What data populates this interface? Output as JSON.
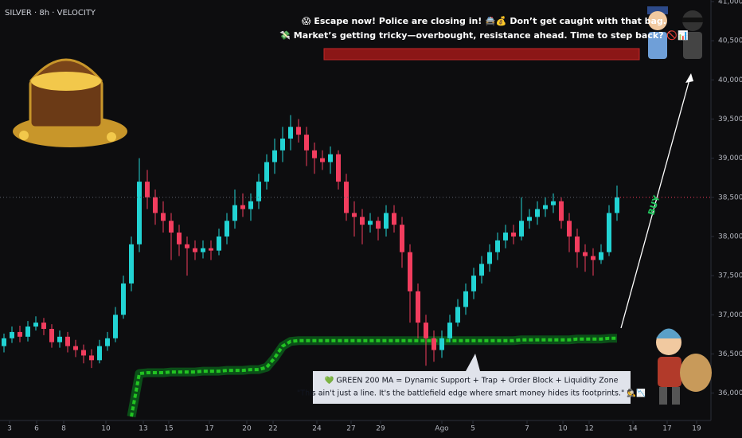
{
  "chart_data": {
    "type": "candlestick",
    "title": "SILVER · 8h · VELOCITY",
    "candles": {
      "open": [
        36600,
        36700,
        36780,
        36720,
        36850,
        36900,
        36820,
        36650,
        36720,
        36600,
        36550,
        36480,
        36420,
        36600,
        36700,
        37000,
        37400,
        37900,
        38700,
        38500,
        38300,
        38200,
        38050,
        37900,
        37850,
        37800,
        37850,
        37820,
        38000,
        38200,
        38400,
        38350,
        38450,
        38700,
        38950,
        39100,
        39250,
        39400,
        39300,
        39100,
        39000,
        38950,
        39050,
        38700,
        38300,
        38250,
        38150,
        38200,
        38100,
        38300,
        38150,
        37800,
        37300,
        36900,
        36700,
        36550,
        36700,
        36900,
        37100,
        37300,
        37500,
        37650,
        37800,
        37950,
        38050,
        38000,
        38200,
        38250,
        38350,
        38400,
        38450,
        38200,
        38000,
        37800,
        37750,
        37700,
        37800,
        38300
      ],
      "high": [
        36760,
        36850,
        36860,
        36920,
        36980,
        36960,
        36880,
        36800,
        36780,
        36680,
        36620,
        36560,
        36680,
        36780,
        37100,
        37500,
        38000,
        39000,
        38850,
        38600,
        38450,
        38300,
        38150,
        38000,
        37950,
        37950,
        37950,
        38100,
        38300,
        38600,
        38550,
        38550,
        38800,
        39050,
        39250,
        39400,
        39550,
        39500,
        39400,
        39200,
        39100,
        39150,
        39100,
        38800,
        38450,
        38350,
        38300,
        38250,
        38400,
        38400,
        38250,
        37900,
        37400,
        37000,
        36800,
        36800,
        37000,
        37200,
        37400,
        37600,
        37750,
        37900,
        38050,
        38150,
        38150,
        38500,
        38350,
        38450,
        38500,
        38550,
        38500,
        38300,
        38100,
        37900,
        37850,
        37900,
        38400,
        38650
      ],
      "low": [
        36520,
        36640,
        36650,
        36660,
        36800,
        36740,
        36580,
        36580,
        36520,
        36460,
        36380,
        36320,
        36380,
        36540,
        36650,
        36950,
        37300,
        37800,
        38350,
        38150,
        38050,
        37700,
        37750,
        37500,
        37700,
        37720,
        37700,
        37760,
        37900,
        38100,
        38250,
        38200,
        38350,
        38600,
        38800,
        38950,
        39100,
        39200,
        38900,
        38800,
        38850,
        38800,
        38600,
        38200,
        38000,
        37900,
        38050,
        37950,
        38000,
        38050,
        37600,
        36900,
        36700,
        36350,
        36400,
        36450,
        36650,
        36850,
        37000,
        37200,
        37400,
        37550,
        37700,
        37850,
        37900,
        37950,
        38100,
        38150,
        38250,
        38300,
        38100,
        37800,
        37600,
        37550,
        37500,
        37650,
        37750,
        38200
      ],
      "close": [
        36700,
        36780,
        36720,
        36850,
        36900,
        36820,
        36650,
        36720,
        36600,
        36550,
        36480,
        36420,
        36600,
        36700,
        37000,
        37400,
        37900,
        38700,
        38500,
        38300,
        38200,
        38050,
        37900,
        37850,
        37800,
        37850,
        37820,
        38000,
        38200,
        38400,
        38350,
        38450,
        38700,
        38950,
        39100,
        39250,
        39400,
        39300,
        39100,
        39000,
        38950,
        39050,
        38700,
        38300,
        38250,
        38150,
        38200,
        38100,
        38300,
        38150,
        37800,
        37300,
        36900,
        36700,
        36550,
        36700,
        36900,
        37100,
        37300,
        37500,
        37650,
        37800,
        37950,
        38050,
        38000,
        38200,
        38250,
        38350,
        38400,
        38450,
        38200,
        38000,
        37800,
        37750,
        37700,
        37800,
        38300,
        38500
      ],
      "up_color": "#22d3d3",
      "down_color": "#f23d5e"
    },
    "moving_average": {
      "color": "#22c322",
      "values": [
        null,
        null,
        null,
        null,
        null,
        null,
        null,
        null,
        null,
        null,
        null,
        null,
        null,
        null,
        null,
        null,
        35700,
        36250,
        36260,
        36260,
        36260,
        36270,
        36270,
        36270,
        36270,
        36280,
        36280,
        36280,
        36290,
        36290,
        36290,
        36300,
        36300,
        36330,
        36450,
        36600,
        36660,
        36670,
        36670,
        36670,
        36670,
        36670,
        36670,
        36670,
        36670,
        36670,
        36670,
        36670,
        36670,
        36670,
        36670,
        36670,
        36670,
        36670,
        36670,
        36670,
        36670,
        36670,
        36670,
        36670,
        36670,
        36670,
        36670,
        36670,
        36670,
        36680,
        36680,
        36680,
        36680,
        36680,
        36680,
        36680,
        36690,
        36690,
        36690,
        36690,
        36700,
        36700
      ]
    },
    "xlim": [
      -0.5,
      88.3
    ],
    "xticks": [
      {
        "value": 0.7,
        "label": "3"
      },
      {
        "value": 4.1,
        "label": "6"
      },
      {
        "value": 7.5,
        "label": "8"
      },
      {
        "value": 12.8,
        "label": "10"
      },
      {
        "value": 17.5,
        "label": "13"
      },
      {
        "value": 20.7,
        "label": "15"
      },
      {
        "value": 25.8,
        "label": "17"
      },
      {
        "value": 30.5,
        "label": "20"
      },
      {
        "value": 33.8,
        "label": "22"
      },
      {
        "value": 39.3,
        "label": "24"
      },
      {
        "value": 43.6,
        "label": "27"
      },
      {
        "value": 47.3,
        "label": "29"
      },
      {
        "value": 55,
        "label": "Ago"
      },
      {
        "value": 58.9,
        "label": "5"
      },
      {
        "value": 65.7,
        "label": "7"
      },
      {
        "value": 70.2,
        "label": "10"
      },
      {
        "value": 73.5,
        "label": "12"
      },
      {
        "value": 79,
        "label": "14"
      },
      {
        "value": 83.3,
        "label": "17"
      },
      {
        "value": 87,
        "label": "19"
      }
    ],
    "ylim": [
      35630,
      41020
    ],
    "yticks": [
      {
        "value": 36000,
        "label": "36,000"
      },
      {
        "value": 36500,
        "label": "36,500"
      },
      {
        "value": 37000,
        "label": "37,000"
      },
      {
        "value": 37500,
        "label": "37,500"
      },
      {
        "value": 38000,
        "label": "38,000"
      },
      {
        "value": 38500,
        "label": "38,500"
      },
      {
        "value": 39000,
        "label": "39,000"
      },
      {
        "value": 39500,
        "label": "39,500"
      },
      {
        "value": 40000,
        "label": "40,000"
      },
      {
        "value": 40500,
        "label": "40,500"
      },
      {
        "value": 41000,
        "label": "41,000"
      }
    ],
    "annotations": {
      "top": [
        "😱 Escape now! Police are closing in! 🚔💰 Don’t get caught with that bag.",
        "💸 Market’s getting tricky—overbought, resistance ahead. Time to step back? 🚫📊"
      ],
      "bottom": [
        "💚 GREEN 200 MA = Dynamic Support + Trap + Order Block + Liquidity Zone",
        "\"This ain't just a line. It's the battlefield edge where smart money hides its footprints.\" 🕵️📉"
      ],
      "signal": "BUY"
    }
  }
}
